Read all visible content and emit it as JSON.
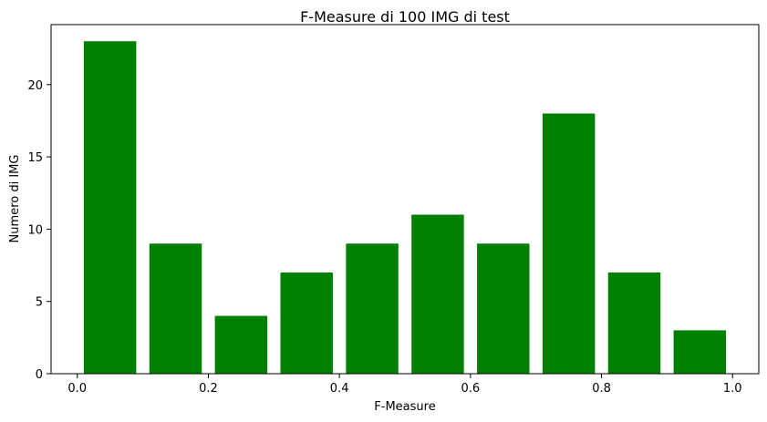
{
  "chart_data": {
    "type": "bar",
    "title": "F-Measure di 100 IMG di test",
    "xlabel": "F-Measure",
    "ylabel": "Numero di IMG",
    "bar_color": "#008000",
    "bins": [
      {
        "x": 0.05,
        "width": 0.08,
        "value": 23
      },
      {
        "x": 0.15,
        "width": 0.08,
        "value": 9
      },
      {
        "x": 0.25,
        "width": 0.08,
        "value": 4
      },
      {
        "x": 0.35,
        "width": 0.08,
        "value": 7
      },
      {
        "x": 0.45,
        "width": 0.08,
        "value": 9
      },
      {
        "x": 0.55,
        "width": 0.08,
        "value": 11
      },
      {
        "x": 0.65,
        "width": 0.08,
        "value": 9
      },
      {
        "x": 0.75,
        "width": 0.08,
        "value": 18
      },
      {
        "x": 0.85,
        "width": 0.08,
        "value": 7
      },
      {
        "x": 0.95,
        "width": 0.08,
        "value": 3
      }
    ],
    "xlim": [
      -0.04,
      1.04
    ],
    "ylim": [
      0,
      24.15
    ],
    "xticks": [
      0.0,
      0.2,
      0.4,
      0.6,
      0.8,
      1.0
    ],
    "xtick_labels": [
      "0.0",
      "0.2",
      "0.4",
      "0.6",
      "0.8",
      "1.0"
    ],
    "yticks": [
      0,
      5,
      10,
      15,
      20
    ],
    "ytick_labels": [
      "0",
      "5",
      "10",
      "15",
      "20"
    ],
    "grid": false,
    "legend": "none"
  }
}
